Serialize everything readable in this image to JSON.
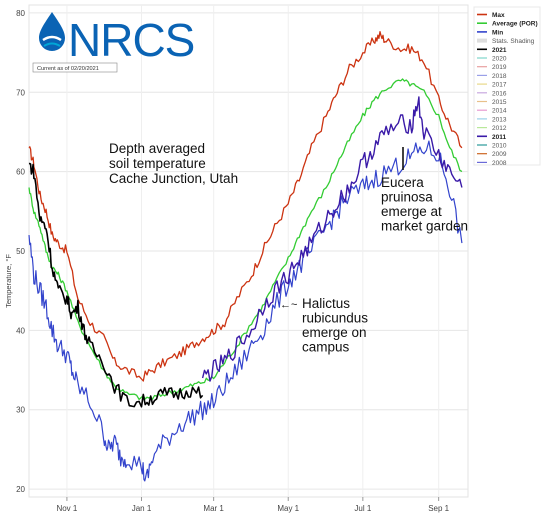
{
  "logo": {
    "text": "NRCS",
    "caption": "Current as of 02/20/2021",
    "brand_color": "#0a63b4",
    "accent_color": "#00a6d6"
  },
  "chart_data": {
    "type": "line",
    "title": "",
    "xlabel": "",
    "ylabel": "Temperature, °F",
    "xlim": [
      "2020-10-01",
      "2021-09-25"
    ],
    "ylim": [
      19,
      81
    ],
    "y_ticks": [
      20,
      30,
      40,
      50,
      60,
      70,
      80
    ],
    "x_ticks": [
      {
        "label": "Nov 1",
        "date": "2020-11-01"
      },
      {
        "label": "Jan 1",
        "date": "2021-01-01"
      },
      {
        "label": "Mar 1",
        "date": "2021-03-01"
      },
      {
        "label": "May 1",
        "date": "2021-05-01"
      },
      {
        "label": "Jul 1",
        "date": "2021-07-01"
      },
      {
        "label": "Sep 1",
        "date": "2021-09-01"
      }
    ],
    "grid": true,
    "legend_placement": "right",
    "legend": [
      {
        "label": "Max",
        "color": "#cc3311",
        "bold": true
      },
      {
        "label": "Average (POR)",
        "color": "#33cc33",
        "bold": true
      },
      {
        "label": "Min",
        "color": "#3344cc",
        "bold": true
      },
      {
        "label": "Stats. Shading",
        "color": "#dddddd",
        "bold": false
      },
      {
        "label": "2021",
        "color": "#000000",
        "bold": true
      },
      {
        "label": "2020",
        "color": "#7fd4c9",
        "bold": false
      },
      {
        "label": "2019",
        "color": "#e8a0a0",
        "bold": false
      },
      {
        "label": "2018",
        "color": "#9aa0e8",
        "bold": false
      },
      {
        "label": "2017",
        "color": "#e8d98a",
        "bold": false
      },
      {
        "label": "2016",
        "color": "#c8a8e0",
        "bold": false
      },
      {
        "label": "2015",
        "color": "#e8c08a",
        "bold": false
      },
      {
        "label": "2014",
        "color": "#e89ad0",
        "bold": false
      },
      {
        "label": "2013",
        "color": "#9ad0e8",
        "bold": false
      },
      {
        "label": "2012",
        "color": "#b8e89a",
        "bold": false
      },
      {
        "label": "2011",
        "color": "#3a1aa8",
        "bold": true
      },
      {
        "label": "2010",
        "color": "#2a9a9a",
        "bold": false
      },
      {
        "label": "2009",
        "color": "#cc6622",
        "bold": false
      },
      {
        "label": "2008",
        "color": "#6a6ad8",
        "bold": false
      }
    ],
    "series": [
      {
        "name": "Max",
        "color": "#cc3311",
        "x": [
          "2020-10-01",
          "2020-10-05",
          "2020-10-10",
          "2020-10-15",
          "2020-10-20",
          "2020-10-25",
          "2020-11-01",
          "2020-11-10",
          "2020-11-20",
          "2020-12-01",
          "2020-12-10",
          "2020-12-20",
          "2021-01-01",
          "2021-01-10",
          "2021-01-20",
          "2021-02-01",
          "2021-02-10",
          "2021-02-20",
          "2021-03-01",
          "2021-03-10",
          "2021-03-20",
          "2021-04-01",
          "2021-04-10",
          "2021-04-20",
          "2021-05-01",
          "2021-05-10",
          "2021-05-20",
          "2021-06-01",
          "2021-06-10",
          "2021-06-20",
          "2021-07-01",
          "2021-07-10",
          "2021-07-15",
          "2021-07-20",
          "2021-08-01",
          "2021-08-10",
          "2021-08-20",
          "2021-09-01",
          "2021-09-10",
          "2021-09-20"
        ],
        "y": [
          63,
          61,
          57,
          55,
          52,
          51,
          50,
          44,
          41,
          39,
          36,
          35,
          34,
          35,
          36,
          37,
          38,
          39,
          40,
          41,
          44,
          47,
          50,
          53,
          56,
          59,
          63,
          67,
          70,
          73,
          75,
          76.5,
          77.2,
          76.5,
          75.5,
          75.5,
          74,
          69,
          66,
          63
        ]
      },
      {
        "name": "Average (POR)",
        "color": "#33cc33",
        "x": [
          "2020-10-01",
          "2020-10-05",
          "2020-10-10",
          "2020-10-15",
          "2020-10-20",
          "2020-10-25",
          "2020-11-01",
          "2020-11-10",
          "2020-11-20",
          "2020-12-01",
          "2020-12-10",
          "2020-12-20",
          "2021-01-01",
          "2021-01-10",
          "2021-01-20",
          "2021-02-01",
          "2021-02-10",
          "2021-02-20",
          "2021-03-01",
          "2021-03-10",
          "2021-03-20",
          "2021-04-01",
          "2021-04-10",
          "2021-04-20",
          "2021-05-01",
          "2021-05-10",
          "2021-05-20",
          "2021-06-01",
          "2021-06-10",
          "2021-06-20",
          "2021-07-01",
          "2021-07-10",
          "2021-07-20",
          "2021-08-01",
          "2021-08-10",
          "2021-08-20",
          "2021-09-01",
          "2021-09-10",
          "2021-09-20"
        ],
        "y": [
          58,
          55,
          53,
          50,
          48,
          47,
          45,
          41,
          38,
          35,
          33,
          32,
          31.5,
          31.5,
          32,
          32.5,
          33,
          33.5,
          34,
          36,
          38,
          41,
          43,
          46,
          49,
          52,
          55,
          58,
          61,
          64,
          67,
          69,
          70.5,
          71.5,
          71,
          70,
          67,
          63,
          60
        ]
      },
      {
        "name": "Min",
        "color": "#3344cc",
        "x": [
          "2020-10-01",
          "2020-10-05",
          "2020-10-10",
          "2020-10-15",
          "2020-10-20",
          "2020-10-25",
          "2020-11-01",
          "2020-11-05",
          "2020-11-10",
          "2020-11-20",
          "2020-12-01",
          "2020-12-05",
          "2020-12-10",
          "2020-12-15",
          "2020-12-20",
          "2021-01-01",
          "2021-01-05",
          "2021-01-10",
          "2021-01-20",
          "2021-02-01",
          "2021-02-10",
          "2021-02-20",
          "2021-03-01",
          "2021-03-10",
          "2021-03-20",
          "2021-04-01",
          "2021-04-10",
          "2021-04-20",
          "2021-05-01",
          "2021-05-10",
          "2021-05-20",
          "2021-06-01",
          "2021-06-10",
          "2021-06-20",
          "2021-07-01",
          "2021-07-10",
          "2021-07-20",
          "2021-08-01",
          "2021-08-10",
          "2021-08-20",
          "2021-09-01",
          "2021-09-10",
          "2021-09-20"
        ],
        "y": [
          52,
          47,
          45,
          43,
          40,
          38,
          37,
          35,
          33,
          31,
          27,
          25,
          26,
          24,
          24,
          23,
          21,
          24,
          26,
          28,
          29,
          30,
          31,
          33,
          35,
          38,
          40,
          43,
          46,
          48,
          50,
          53,
          55,
          57,
          58,
          59,
          60,
          61,
          62,
          63,
          62,
          58,
          51
        ]
      },
      {
        "name": "2021",
        "color": "#000000",
        "x": [
          "2020-10-01",
          "2020-10-05",
          "2020-10-10",
          "2020-10-15",
          "2020-10-20",
          "2020-10-25",
          "2020-11-01",
          "2020-11-05",
          "2020-11-10",
          "2020-11-15",
          "2020-11-20",
          "2020-12-01",
          "2020-12-10",
          "2020-12-20",
          "2021-01-01",
          "2021-01-10",
          "2021-01-20",
          "2021-01-31",
          "2021-02-10",
          "2021-02-20"
        ],
        "y": [
          61,
          60,
          54,
          53,
          48,
          45,
          44,
          42,
          43,
          40,
          38,
          36,
          33,
          31,
          31,
          31.5,
          32,
          32,
          32.5,
          31.8
        ]
      },
      {
        "name": "2011",
        "color": "#3a1aa8",
        "x": [
          "2021-02-20",
          "2021-03-01",
          "2021-03-10",
          "2021-03-20",
          "2021-04-01",
          "2021-04-10",
          "2021-04-20",
          "2021-05-01",
          "2021-05-10",
          "2021-05-20",
          "2021-06-01",
          "2021-06-10",
          "2021-06-20",
          "2021-07-01",
          "2021-07-10",
          "2021-07-20",
          "2021-08-01",
          "2021-08-10",
          "2021-08-15",
          "2021-08-20",
          "2021-09-01",
          "2021-09-10",
          "2021-09-20"
        ],
        "y": [
          34,
          35,
          36,
          38,
          40,
          43,
          45,
          47,
          49,
          51,
          54,
          56,
          58,
          61,
          63,
          65,
          66,
          66,
          69,
          65,
          62,
          60,
          58
        ]
      }
    ],
    "annotations": {
      "title_note": [
        "Depth averaged",
        "soil temperature",
        "Cache Junction, Utah"
      ],
      "eucera": [
        "Eucera",
        "pruinosa",
        "emerge at",
        "market garden"
      ],
      "halictus_arrow": "←~",
      "halictus": [
        "Halictus",
        "rubicundus",
        "emerge on",
        "campus"
      ]
    }
  }
}
